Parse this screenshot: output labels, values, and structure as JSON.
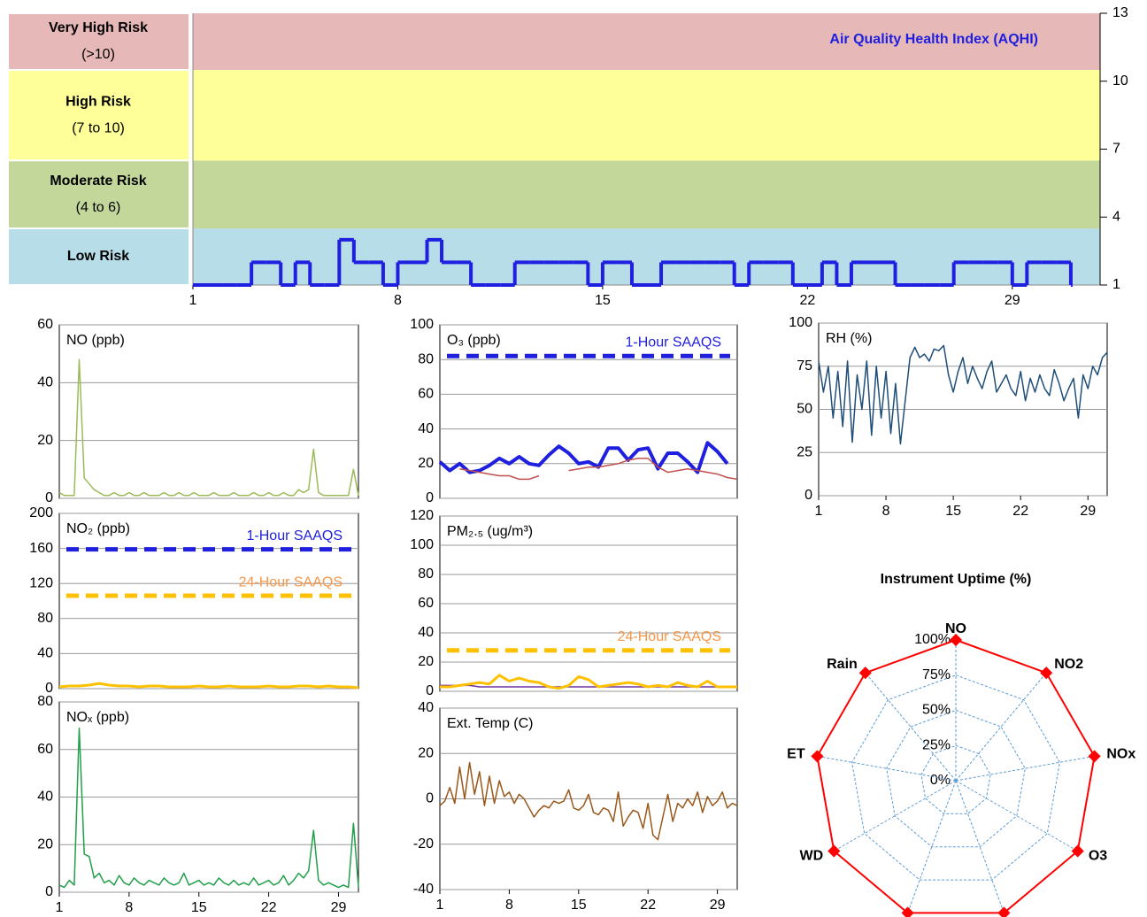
{
  "chart_data": [
    {
      "type": "band_line",
      "title": "Air Quality Health Index (AQHI)",
      "title_color": "#1f1fe0",
      "bands": [
        {
          "name": "Low Risk",
          "from": 1,
          "to": 3.5,
          "color": "#b7dde8"
        },
        {
          "name": "Moderate Risk",
          "range": "(4 to 6)",
          "from": 3.5,
          "to": 6.5,
          "color": "#c4d79b"
        },
        {
          "name": "High Risk",
          "range": "(7 to 10)",
          "from": 6.5,
          "to": 10.5,
          "color": "#ffff99"
        },
        {
          "name": "Very High Risk",
          "range": "(>10)",
          "from": 10.5,
          "to": 13,
          "color": "#e6b8b7"
        }
      ],
      "x": [
        1,
        1.5,
        2,
        2.5,
        3,
        3.5,
        4,
        4.5,
        5,
        5.5,
        6,
        6.5,
        7,
        7.5,
        8,
        8.5,
        9,
        9.5,
        10,
        10.5,
        11,
        11.5,
        12,
        12.5,
        13,
        13.5,
        14,
        14.5,
        15,
        15.5,
        16,
        16.5,
        17,
        17.5,
        18,
        18.5,
        19,
        19.5,
        20,
        20.5,
        21,
        21.5,
        22,
        22.5,
        23,
        23.5,
        24,
        24.5,
        25,
        25.5,
        26,
        26.5,
        27,
        27.5,
        28,
        28.5,
        29,
        29.5,
        30,
        30.5,
        31
      ],
      "series": [
        {
          "name": "AQHI",
          "color": "#1f1fe0",
          "width": 4,
          "step": true,
          "values": [
            1,
            1,
            1,
            1,
            2,
            2,
            1,
            2,
            1,
            1,
            3,
            2,
            2,
            1,
            2,
            2,
            3,
            2,
            2,
            1,
            1,
            1,
            2,
            2,
            2,
            2,
            2,
            1,
            2,
            2,
            1,
            1,
            2,
            2,
            2,
            2,
            2,
            1,
            2,
            2,
            2,
            1,
            1,
            2,
            1,
            2,
            2,
            2,
            1,
            1,
            1,
            1,
            2,
            2,
            2,
            2,
            1,
            2,
            2,
            2,
            1
          ]
        }
      ],
      "xlim": [
        1,
        32
      ],
      "xticks": [
        1,
        8,
        15,
        22,
        29
      ],
      "ylim": [
        1,
        13
      ],
      "yticks": [
        1,
        4,
        7,
        10,
        13
      ],
      "y_axis_side": "right",
      "grid": false
    },
    {
      "type": "line",
      "title": "NO (ppb)",
      "x": [
        1,
        1.5,
        2,
        2.5,
        3,
        3.5,
        4,
        4.5,
        5,
        5.5,
        6,
        6.5,
        7,
        7.5,
        8,
        8.5,
        9,
        9.5,
        10,
        10.5,
        11,
        11.5,
        12,
        12.5,
        13,
        13.5,
        14,
        14.5,
        15,
        15.5,
        16,
        16.5,
        17,
        17.5,
        18,
        18.5,
        19,
        19.5,
        20,
        20.5,
        21,
        21.5,
        22,
        22.5,
        23,
        23.5,
        24,
        24.5,
        25,
        25.5,
        26,
        26.5,
        27,
        27.5,
        28,
        28.5,
        29,
        29.5,
        30,
        30.5,
        31
      ],
      "series": [
        {
          "name": "NO",
          "color": "#9bbb59",
          "width": 1.5,
          "values": [
            2,
            1,
            1,
            1,
            48,
            7,
            5,
            3,
            2,
            1,
            1,
            2,
            1,
            1,
            2,
            1,
            1,
            2,
            1,
            1,
            1,
            2,
            1,
            1,
            2,
            1,
            1,
            2,
            1,
            1,
            1,
            2,
            1,
            1,
            1,
            2,
            1,
            1,
            1,
            2,
            1,
            1,
            2,
            1,
            1,
            2,
            1,
            1,
            3,
            2,
            3,
            17,
            2,
            1,
            1,
            1,
            1,
            1,
            1,
            10,
            1
          ]
        }
      ],
      "xlim": [
        1,
        31
      ],
      "ylim": [
        0,
        60
      ],
      "yticks": [
        0,
        20,
        40,
        60
      ],
      "grid": true
    },
    {
      "type": "line",
      "title": "O₃ (ppb)",
      "x": [
        1,
        2,
        3,
        4,
        5,
        6,
        7,
        8,
        9,
        10,
        11,
        12,
        13,
        14,
        15,
        16,
        17,
        18,
        19,
        20,
        21,
        22,
        23,
        24,
        25,
        26,
        27,
        28,
        29,
        30,
        31
      ],
      "series": [
        {
          "name": "O3 1-Hour",
          "color": "#1f1fe0",
          "width": 4,
          "values": [
            21,
            16,
            20,
            15,
            16,
            19,
            23,
            20,
            24,
            20,
            19,
            25,
            30,
            26,
            20,
            21,
            18,
            29,
            29,
            22,
            28,
            29,
            17,
            26,
            26,
            21,
            15,
            32,
            27,
            20,
            null
          ]
        },
        {
          "name": "O3 24-Hour",
          "color": "#c0504d",
          "width": 1.5,
          "values": [
            null,
            null,
            17,
            16,
            15,
            14,
            13,
            13,
            11,
            11,
            13,
            null,
            null,
            16,
            17,
            18,
            18,
            19,
            20,
            22,
            23,
            23,
            18,
            15,
            16,
            17,
            16,
            15,
            14,
            12,
            11
          ]
        }
      ],
      "reference_lines": [
        {
          "label": "1-Hour SAAQS",
          "value": 82,
          "color": "#1f1fe0",
          "label_color": "#1f1fe0"
        }
      ],
      "xlim": [
        1,
        31
      ],
      "ylim": [
        0,
        100
      ],
      "yticks": [
        0,
        20,
        40,
        60,
        80,
        100
      ],
      "grid": true
    },
    {
      "type": "line",
      "title": "RH (%)",
      "x": [
        1,
        1.5,
        2,
        2.5,
        3,
        3.5,
        4,
        4.5,
        5,
        5.5,
        6,
        6.5,
        7,
        7.5,
        8,
        8.5,
        9,
        9.5,
        10,
        10.5,
        11,
        11.5,
        12,
        12.5,
        13,
        13.5,
        14,
        14.5,
        15,
        15.5,
        16,
        16.5,
        17,
        17.5,
        18,
        18.5,
        19,
        19.5,
        20,
        20.5,
        21,
        21.5,
        22,
        22.5,
        23,
        23.5,
        24,
        24.5,
        25,
        25.5,
        26,
        26.5,
        27,
        27.5,
        28,
        28.5,
        29,
        29.5,
        30,
        30.5,
        31
      ],
      "series": [
        {
          "name": "RH",
          "color": "#1f4e79",
          "width": 1.5,
          "values": [
            78,
            60,
            75,
            45,
            72,
            40,
            78,
            31,
            70,
            50,
            78,
            35,
            75,
            45,
            72,
            36,
            65,
            30,
            55,
            80,
            86,
            80,
            82,
            78,
            85,
            84,
            87,
            70,
            60,
            72,
            80,
            65,
            75,
            68,
            62,
            72,
            78,
            60,
            65,
            70,
            62,
            58,
            72,
            55,
            68,
            60,
            70,
            62,
            58,
            73,
            65,
            55,
            62,
            68,
            45,
            70,
            62,
            75,
            70,
            80,
            83
          ]
        }
      ],
      "xlim": [
        1,
        31
      ],
      "xticks": [
        1,
        8,
        15,
        22,
        29
      ],
      "ylim": [
        0,
        100
      ],
      "yticks": [
        0,
        25,
        50,
        75,
        100
      ],
      "grid": true
    },
    {
      "type": "line",
      "title": "NO₂ (ppb)",
      "x": [
        1,
        2,
        3,
        4,
        5,
        6,
        7,
        8,
        9,
        10,
        11,
        12,
        13,
        14,
        15,
        16,
        17,
        18,
        19,
        20,
        21,
        22,
        23,
        24,
        25,
        26,
        27,
        28,
        29,
        30,
        31
      ],
      "series": [
        {
          "name": "NO2",
          "color": "#ffc000",
          "width": 3,
          "values": [
            2,
            3,
            3,
            4,
            6,
            4,
            3,
            3,
            2,
            3,
            3,
            2,
            2,
            2,
            3,
            2,
            2,
            3,
            2,
            2,
            2,
            3,
            2,
            2,
            3,
            3,
            2,
            3,
            2,
            2,
            1
          ]
        }
      ],
      "reference_lines": [
        {
          "label": "1-Hour SAAQS",
          "value": 159,
          "color": "#1f1fe0",
          "label_color": "#1f1fe0"
        },
        {
          "label": "24-Hour SAAQS",
          "value": 106,
          "color": "#ffc000",
          "label_color": "#f79646"
        }
      ],
      "xlim": [
        1,
        31
      ],
      "ylim": [
        0,
        200
      ],
      "yticks": [
        0,
        40,
        80,
        120,
        160,
        200
      ],
      "grid": true
    },
    {
      "type": "line",
      "title": "PM₂.₅ (ug/m³)",
      "x": [
        1,
        2,
        3,
        4,
        5,
        6,
        7,
        8,
        9,
        10,
        11,
        12,
        13,
        14,
        15,
        16,
        17,
        18,
        19,
        20,
        21,
        22,
        23,
        24,
        25,
        26,
        27,
        28,
        29,
        30,
        31
      ],
      "series": [
        {
          "name": "PM2.5 24-Hour",
          "color": "#7030a0",
          "width": 1.5,
          "values": [
            4,
            4,
            4,
            4,
            3,
            3,
            3,
            3,
            3,
            3,
            3,
            3,
            3,
            3,
            3,
            3,
            3,
            3,
            3,
            3,
            3,
            3,
            3,
            3,
            3,
            3,
            3,
            3,
            3,
            3,
            3
          ]
        },
        {
          "name": "PM2.5",
          "color": "#ffc000",
          "width": 3,
          "values": [
            3,
            3,
            4,
            5,
            6,
            5,
            11,
            7,
            9,
            7,
            6,
            3,
            2,
            4,
            10,
            8,
            3,
            4,
            5,
            6,
            5,
            3,
            4,
            3,
            6,
            4,
            3,
            7,
            3,
            3,
            3
          ]
        }
      ],
      "reference_lines": [
        {
          "label": "24-Hour SAAQS",
          "value": 28,
          "color": "#ffc000",
          "label_color": "#f79646"
        }
      ],
      "xlim": [
        1,
        31
      ],
      "ylim": [
        0,
        120
      ],
      "yticks": [
        0,
        20,
        40,
        60,
        80,
        100,
        120
      ],
      "grid": true
    },
    {
      "type": "line",
      "title": "NOₓ (ppb)",
      "x": [
        1,
        1.5,
        2,
        2.5,
        3,
        3.5,
        4,
        4.5,
        5,
        5.5,
        6,
        6.5,
        7,
        7.5,
        8,
        8.5,
        9,
        9.5,
        10,
        10.5,
        11,
        11.5,
        12,
        12.5,
        13,
        13.5,
        14,
        14.5,
        15,
        15.5,
        16,
        16.5,
        17,
        17.5,
        18,
        18.5,
        19,
        19.5,
        20,
        20.5,
        21,
        21.5,
        22,
        22.5,
        23,
        23.5,
        24,
        24.5,
        25,
        25.5,
        26,
        26.5,
        27,
        27.5,
        28,
        28.5,
        29,
        29.5,
        30,
        30.5,
        31
      ],
      "series": [
        {
          "name": "NOx",
          "color": "#21a04a",
          "width": 1.5,
          "values": [
            3,
            2,
            5,
            3,
            69,
            16,
            15,
            6,
            8,
            4,
            5,
            3,
            7,
            4,
            3,
            6,
            4,
            3,
            5,
            4,
            3,
            6,
            4,
            3,
            4,
            8,
            3,
            4,
            5,
            3,
            4,
            3,
            6,
            4,
            3,
            5,
            3,
            4,
            3,
            6,
            3,
            4,
            5,
            3,
            4,
            7,
            3,
            5,
            8,
            6,
            9,
            26,
            5,
            3,
            4,
            3,
            2,
            3,
            2,
            29,
            2
          ]
        }
      ],
      "xlim": [
        1,
        31
      ],
      "xticks": [
        1,
        8,
        15,
        22,
        29
      ],
      "ylim": [
        0,
        80
      ],
      "yticks": [
        0,
        20,
        40,
        60,
        80
      ],
      "grid": true
    },
    {
      "type": "line",
      "title": "Ext. Temp (C)",
      "x": [
        1,
        1.5,
        2,
        2.5,
        3,
        3.5,
        4,
        4.5,
        5,
        5.5,
        6,
        6.5,
        7,
        7.5,
        8,
        8.5,
        9,
        9.5,
        10,
        10.5,
        11,
        11.5,
        12,
        12.5,
        13,
        13.5,
        14,
        14.5,
        15,
        15.5,
        16,
        16.5,
        17,
        17.5,
        18,
        18.5,
        19,
        19.5,
        20,
        20.5,
        21,
        21.5,
        22,
        22.5,
        23,
        23.5,
        24,
        24.5,
        25,
        25.5,
        26,
        26.5,
        27,
        27.5,
        28,
        28.5,
        29,
        29.5,
        30,
        30.5,
        31
      ],
      "series": [
        {
          "name": "Ext. Temp",
          "color": "#99581a",
          "width": 1.5,
          "values": [
            -3,
            -1,
            5,
            -2,
            14,
            0,
            16,
            2,
            12,
            -3,
            10,
            -2,
            8,
            1,
            3,
            -2,
            2,
            0,
            -4,
            -8,
            -5,
            -3,
            -4,
            -1,
            -2,
            -1,
            4,
            -4,
            -5,
            -3,
            2,
            -6,
            -7,
            -4,
            -5,
            -10,
            3,
            -12,
            -8,
            -5,
            -6,
            -13,
            -2,
            -16,
            -18,
            -8,
            2,
            -10,
            -2,
            -4,
            0,
            -3,
            3,
            -6,
            1,
            -3,
            -1,
            3,
            -4,
            -2,
            -3
          ]
        }
      ],
      "xlim": [
        1,
        31
      ],
      "xticks": [
        1,
        8,
        15,
        22,
        29
      ],
      "ylim": [
        -40,
        40
      ],
      "yticks": [
        -40,
        -20,
        0,
        20,
        40
      ],
      "grid": true
    },
    {
      "type": "radar",
      "title": "Instrument Uptime (%)",
      "categories": [
        "NO",
        "NO2",
        "NOx",
        "O3",
        null,
        null,
        "WD",
        "ET",
        "Rain"
      ],
      "values": [
        100,
        100,
        100,
        100,
        100,
        100,
        100,
        100,
        100
      ],
      "color": "#ff0000",
      "grid_color": "#5b9bd5",
      "rlim": [
        0,
        100
      ],
      "rticks": [
        {
          "value": 0,
          "label": "0%"
        },
        {
          "value": 25,
          "label": "25%"
        },
        {
          "value": 50,
          "label": "50%"
        },
        {
          "value": 75,
          "label": "75%"
        },
        {
          "value": 100,
          "label": "100%"
        }
      ]
    }
  ]
}
